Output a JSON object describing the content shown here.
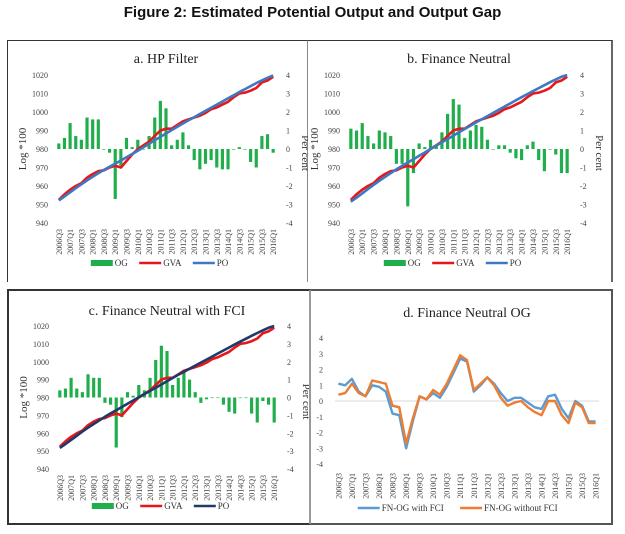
{
  "figure_title": "Figure 2: Estimated Potential Output and Output Gap",
  "chart_data": [
    {
      "id": "a",
      "type": "bar+line",
      "title": "a. HP Filter",
      "ylabel_left": "Log *100",
      "ylabel_right": "Per cent",
      "ylim_left": [
        940,
        1020
      ],
      "yticks_left": [
        940,
        950,
        960,
        970,
        980,
        990,
        1000,
        1010,
        1020
      ],
      "ylim_right": [
        -4,
        4
      ],
      "yticks_right": [
        -4,
        -3,
        -2,
        -1,
        0,
        1,
        2,
        3,
        4
      ],
      "x_tick_labels": [
        "2006Q3",
        "2007Q1",
        "2007Q3",
        "2008Q1",
        "2008Q3",
        "2009Q1",
        "2009Q3",
        "2010Q1",
        "2010Q3",
        "2011Q1",
        "2011Q3",
        "2012Q1",
        "2012Q3",
        "2013Q1",
        "2013Q3",
        "2014Q1",
        "2014Q3",
        "2015Q1",
        "2015Q3",
        "2016Q1"
      ],
      "legend": [
        {
          "name": "OG",
          "kind": "bar",
          "color": "#1fae4b"
        },
        {
          "name": "GVA",
          "kind": "line",
          "color": "#e8161b"
        },
        {
          "name": "PO",
          "kind": "line",
          "color": "#3d78c0"
        }
      ],
      "series": [
        {
          "name": "OG",
          "axis": "right",
          "values": [
            0.3,
            0.6,
            1.4,
            0.7,
            0.5,
            1.7,
            1.6,
            1.6,
            0.0,
            -0.2,
            -2.7,
            -0.9,
            0.6,
            0.1,
            0.5,
            0.0,
            0.7,
            1.7,
            2.6,
            2.2,
            0.2,
            0.5,
            0.9,
            0.2,
            -0.6,
            -1.1,
            -0.8,
            -0.6,
            -1.0,
            -1.1,
            -1.1,
            0.0,
            0.1,
            0.0,
            -0.7,
            -1.0,
            0.7,
            0.8,
            -0.2
          ]
        },
        {
          "name": "GVA",
          "axis": "left",
          "values": [
            952.5,
            955.5,
            958,
            960,
            961.5,
            964.5,
            966.5,
            968,
            968.5,
            970,
            971,
            970,
            973.5,
            977,
            980,
            982,
            984,
            987,
            990,
            991,
            991,
            993,
            995,
            996,
            997,
            998,
            999.5,
            1001.5,
            1002.5,
            1004,
            1005.5,
            1008,
            1010,
            1010.5,
            1011.5,
            1013,
            1016,
            1017,
            1019
          ]
        },
        {
          "name": "PO",
          "axis": "left",
          "values": [
            952.2,
            954.4,
            956.6,
            958.8,
            960.9,
            963,
            965,
            966.9,
            968.7,
            970.4,
            972.1,
            973.8,
            975.5,
            977.3,
            979.1,
            980.9,
            982.8,
            984.7,
            986.6,
            988.4,
            990.2,
            992,
            993.8,
            995.5,
            997.2,
            998.9,
            1000.6,
            1002.3,
            1004,
            1005.7,
            1007.4,
            1009.1,
            1010.8,
            1012.4,
            1014,
            1015.6,
            1017.1,
            1018.5,
            1019.8
          ]
        }
      ]
    },
    {
      "id": "b",
      "type": "bar+line",
      "title": "b. Finance Neutral",
      "ylabel_left": "Log *100",
      "ylabel_right": "Per cent",
      "ylim_left": [
        940,
        1020
      ],
      "yticks_left": [
        940,
        950,
        960,
        970,
        980,
        990,
        1000,
        1010,
        1020
      ],
      "ylim_right": [
        -4,
        4
      ],
      "yticks_right": [
        -4,
        -3,
        -2,
        -1,
        0,
        1,
        2,
        3,
        4
      ],
      "x_tick_labels": [
        "2006Q3",
        "2007Q1",
        "2007Q3",
        "2008Q1",
        "2008Q3",
        "2009Q1",
        "2009Q3",
        "2010Q1",
        "2010Q3",
        "2011Q1",
        "2011Q3",
        "2012Q1",
        "2012Q3",
        "2013Q1",
        "2013Q3",
        "2014Q1",
        "2014Q3",
        "2015Q1",
        "2015Q3",
        "2016Q1"
      ],
      "legend": [
        {
          "name": "OG",
          "kind": "bar",
          "color": "#1fae4b"
        },
        {
          "name": "GVA",
          "kind": "line",
          "color": "#e8161b"
        },
        {
          "name": "PO",
          "kind": "line",
          "color": "#3d78c0"
        }
      ],
      "series": [
        {
          "name": "OG",
          "axis": "right",
          "values": [
            1.1,
            1.0,
            1.4,
            0.7,
            0.3,
            1.0,
            0.9,
            0.7,
            -0.8,
            -0.8,
            -3.1,
            -1.3,
            0.3,
            0.1,
            0.5,
            0.2,
            0.9,
            1.9,
            2.7,
            2.4,
            0.6,
            1.0,
            1.3,
            1.2,
            0.5,
            0.0,
            0.2,
            0.2,
            -0.2,
            -0.5,
            -0.6,
            0.2,
            0.4,
            -0.6,
            -1.2,
            0.0,
            -0.3,
            -1.3,
            -1.3
          ]
        },
        {
          "name": "GVA",
          "axis": "left",
          "values": [
            952.5,
            955.5,
            958,
            960,
            961.5,
            964.5,
            966.5,
            968,
            968.5,
            970,
            971,
            970,
            973.5,
            977,
            980,
            982,
            984,
            987,
            990,
            991,
            991,
            993,
            995,
            996,
            997,
            998,
            999.5,
            1001.5,
            1002.5,
            1004,
            1005.5,
            1008,
            1010,
            1010.5,
            1011.5,
            1013,
            1016,
            1017,
            1019
          ]
        },
        {
          "name": "PO",
          "axis": "left",
          "values": [
            951.5,
            953.7,
            956,
            958.3,
            960.6,
            962.8,
            964.9,
            966.9,
            969,
            970.9,
            972.7,
            974.5,
            976.3,
            978.1,
            980,
            981.8,
            983.6,
            985.4,
            987.2,
            989,
            990.8,
            992.6,
            994.4,
            996.1,
            997.8,
            999.5,
            1001.2,
            1002.9,
            1004.6,
            1006.3,
            1008,
            1009.7,
            1011.3,
            1012.9,
            1014.5,
            1016.1,
            1017.6,
            1019,
            1020
          ]
        }
      ]
    },
    {
      "id": "c",
      "type": "bar+line",
      "title": "c. Finance Neutral with FCI",
      "ylabel_left": "Log *100",
      "ylabel_right": "Per cent",
      "ylim_left": [
        940,
        1020
      ],
      "yticks_left": [
        940,
        950,
        960,
        970,
        980,
        990,
        1000,
        1010,
        1020
      ],
      "ylim_right": [
        -4,
        4
      ],
      "yticks_right": [
        -4,
        -3,
        -2,
        -1,
        0,
        1,
        2,
        3,
        4
      ],
      "x_tick_labels": [
        "2006Q3",
        "2007Q1",
        "2007Q3",
        "2008Q1",
        "2008Q3",
        "2009Q1",
        "2009Q3",
        "2010Q1",
        "2010Q3",
        "2011Q1",
        "2011Q3",
        "2012Q1",
        "2012Q3",
        "2013Q1",
        "2013Q3",
        "2014Q1",
        "2014Q3",
        "2015Q1",
        "2015Q3",
        "2016Q1"
      ],
      "legend": [
        {
          "name": "OG",
          "kind": "bar",
          "color": "#1fae4b"
        },
        {
          "name": "GVA",
          "kind": "line",
          "color": "#e8161b"
        },
        {
          "name": "PO",
          "kind": "line",
          "color": "#1f3a68"
        }
      ],
      "series": [
        {
          "name": "OG",
          "axis": "right",
          "values": [
            0.4,
            0.5,
            1.1,
            0.5,
            0.3,
            1.3,
            1.1,
            1.1,
            -0.3,
            -0.4,
            -2.8,
            -1.1,
            0.3,
            0.1,
            0.7,
            0.4,
            1.1,
            2.1,
            2.9,
            2.6,
            0.7,
            1.1,
            1.4,
            1.0,
            0.3,
            -0.3,
            -0.1,
            0.0,
            0.0,
            -0.4,
            -0.8,
            -0.9,
            0.0,
            0.0,
            -0.9,
            -1.4,
            -0.2,
            -0.4,
            -1.4
          ]
        },
        {
          "name": "GVA",
          "axis": "left",
          "values": [
            952.5,
            955.5,
            958,
            960,
            961.5,
            964.5,
            966.5,
            968,
            968.5,
            970,
            971,
            970,
            973.5,
            977,
            980,
            982,
            984,
            987,
            990,
            991,
            991,
            993,
            995,
            996,
            997,
            998,
            999.5,
            1001.5,
            1002.5,
            1004,
            1005.5,
            1008,
            1010,
            1010.5,
            1011.5,
            1013,
            1016,
            1017,
            1019
          ]
        },
        {
          "name": "PO",
          "axis": "left",
          "values": [
            951.8,
            954,
            956.3,
            958.6,
            960.9,
            963.1,
            965.2,
            967.2,
            969.2,
            971.1,
            972.9,
            974.7,
            976.5,
            978.3,
            980.1,
            981.9,
            983.7,
            985.5,
            987.3,
            989.1,
            990.9,
            992.7,
            994.4,
            996.1,
            997.8,
            999.5,
            1001.2,
            1002.9,
            1004.6,
            1006.3,
            1008,
            1009.7,
            1011.3,
            1012.9,
            1014.5,
            1016.1,
            1017.6,
            1019,
            1020
          ]
        }
      ]
    },
    {
      "id": "d",
      "type": "line",
      "title": "d. Finance Neutral OG",
      "ylim": [
        -4,
        4
      ],
      "yticks": [
        -4,
        -3,
        -2,
        -1,
        0,
        1,
        2,
        3,
        4
      ],
      "x_tick_labels": [
        "2006Q3",
        "2007Q1",
        "2007Q3",
        "2008Q1",
        "2008Q3",
        "2009Q1",
        "2009Q3",
        "2010Q1",
        "2010Q3",
        "2011Q1",
        "2011Q3",
        "2012Q1",
        "2012Q3",
        "2013Q1",
        "2013Q3",
        "2014Q1",
        "2014Q3",
        "2015Q1",
        "2015Q3",
        "2016Q1"
      ],
      "legend": [
        {
          "name": "FN-OG with FCI",
          "kind": "line",
          "color": "#5b9bd5"
        },
        {
          "name": "FN-OG without FCI",
          "kind": "line",
          "color": "#ed7d31"
        }
      ],
      "series": [
        {
          "name": "FN-OG with FCI",
          "values": [
            1.1,
            1.0,
            1.4,
            0.6,
            0.3,
            1.0,
            0.9,
            0.6,
            -0.8,
            -0.9,
            -3.0,
            -1.3,
            0.3,
            0.1,
            0.5,
            0.2,
            0.9,
            1.8,
            2.7,
            2.5,
            0.6,
            1.0,
            1.5,
            1.1,
            0.5,
            0.0,
            0.2,
            0.2,
            -0.1,
            -0.4,
            -0.5,
            0.3,
            0.4,
            -0.5,
            -1.1,
            0.0,
            -0.3,
            -1.3,
            -1.3
          ]
        },
        {
          "name": "FN-OG without FCI",
          "values": [
            0.4,
            0.5,
            1.1,
            0.5,
            0.3,
            1.3,
            1.2,
            1.1,
            -0.3,
            -0.4,
            -2.7,
            -1.1,
            0.3,
            0.1,
            0.7,
            0.4,
            1.1,
            2.0,
            2.9,
            2.6,
            0.7,
            1.1,
            1.5,
            1.0,
            0.2,
            -0.3,
            -0.1,
            0.0,
            -0.4,
            -0.7,
            -0.9,
            0.0,
            0.0,
            -0.9,
            -1.4,
            -0.1,
            -0.4,
            -1.4,
            -1.4
          ]
        }
      ]
    }
  ]
}
